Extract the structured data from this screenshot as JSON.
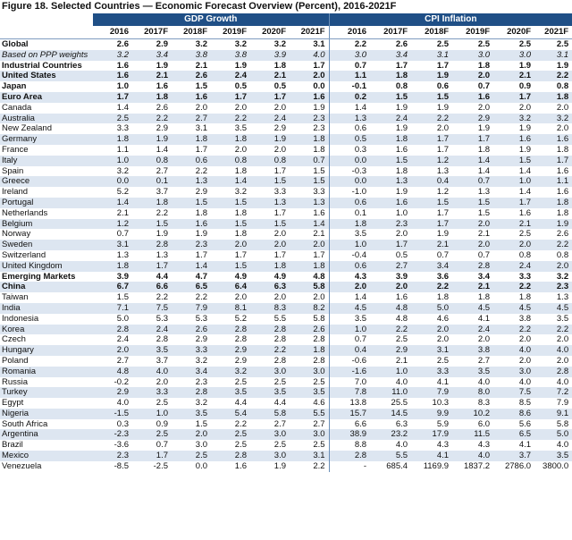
{
  "title": "Figure 18. Selected Countries — Economic Forecast Overview (Percent), 2016-2021F",
  "groups": [
    "GDP Growth",
    "CPI Inflation"
  ],
  "years": [
    "2016",
    "2017F",
    "2018F",
    "2019F",
    "2020F",
    "2021F"
  ],
  "rows": [
    {
      "label": "Global",
      "style": "bold",
      "gdp": [
        "2.6",
        "2.9",
        "3.2",
        "3.2",
        "3.2",
        "3.1"
      ],
      "cpi": [
        "2.2",
        "2.6",
        "2.5",
        "2.5",
        "2.5",
        "2.5"
      ]
    },
    {
      "label": "Based on PPP weights",
      "style": "italic",
      "gdp": [
        "3.2",
        "3.4",
        "3.8",
        "3.8",
        "3.9",
        "4.0"
      ],
      "cpi": [
        "3.0",
        "3.4",
        "3.1",
        "3.0",
        "3.0",
        "3.1"
      ]
    },
    {
      "label": "Industrial Countries",
      "style": "bold",
      "gdp": [
        "1.6",
        "1.9",
        "2.1",
        "1.9",
        "1.8",
        "1.7"
      ],
      "cpi": [
        "0.7",
        "1.7",
        "1.7",
        "1.8",
        "1.9",
        "1.9"
      ]
    },
    {
      "label": "United States",
      "style": "bold",
      "gdp": [
        "1.6",
        "2.1",
        "2.6",
        "2.4",
        "2.1",
        "2.0"
      ],
      "cpi": [
        "1.1",
        "1.8",
        "1.9",
        "2.0",
        "2.1",
        "2.2"
      ]
    },
    {
      "label": "Japan",
      "style": "bold",
      "gdp": [
        "1.0",
        "1.6",
        "1.5",
        "0.5",
        "0.5",
        "0.0"
      ],
      "cpi": [
        "-0.1",
        "0.8",
        "0.6",
        "0.7",
        "0.9",
        "0.8"
      ]
    },
    {
      "label": "Euro Area",
      "style": "bold",
      "gdp": [
        "1.7",
        "1.8",
        "1.6",
        "1.7",
        "1.7",
        "1.6"
      ],
      "cpi": [
        "0.2",
        "1.5",
        "1.5",
        "1.6",
        "1.7",
        "1.8"
      ]
    },
    {
      "label": "Canada",
      "style": "",
      "gdp": [
        "1.4",
        "2.6",
        "2.0",
        "2.0",
        "2.0",
        "1.9"
      ],
      "cpi": [
        "1.4",
        "1.9",
        "1.9",
        "2.0",
        "2.0",
        "2.0"
      ]
    },
    {
      "label": "Australia",
      "style": "",
      "gdp": [
        "2.5",
        "2.2",
        "2.7",
        "2.2",
        "2.4",
        "2.3"
      ],
      "cpi": [
        "1.3",
        "2.4",
        "2.2",
        "2.9",
        "3.2",
        "3.2"
      ]
    },
    {
      "label": "New Zealand",
      "style": "",
      "gdp": [
        "3.3",
        "2.9",
        "3.1",
        "3.5",
        "2.9",
        "2.3"
      ],
      "cpi": [
        "0.6",
        "1.9",
        "2.0",
        "1.9",
        "1.9",
        "2.0"
      ]
    },
    {
      "label": "Germany",
      "style": "",
      "gdp": [
        "1.8",
        "1.9",
        "1.8",
        "1.8",
        "1.9",
        "1.8"
      ],
      "cpi": [
        "0.5",
        "1.8",
        "1.7",
        "1.7",
        "1.6",
        "1.6"
      ]
    },
    {
      "label": "France",
      "style": "",
      "gdp": [
        "1.1",
        "1.4",
        "1.7",
        "2.0",
        "2.0",
        "1.8"
      ],
      "cpi": [
        "0.3",
        "1.6",
        "1.7",
        "1.8",
        "1.9",
        "1.8"
      ]
    },
    {
      "label": "Italy",
      "style": "",
      "gdp": [
        "1.0",
        "0.8",
        "0.6",
        "0.8",
        "0.8",
        "0.7"
      ],
      "cpi": [
        "0.0",
        "1.5",
        "1.2",
        "1.4",
        "1.5",
        "1.7"
      ]
    },
    {
      "label": "Spain",
      "style": "",
      "gdp": [
        "3.2",
        "2.7",
        "2.2",
        "1.8",
        "1.7",
        "1.5"
      ],
      "cpi": [
        "-0.3",
        "1.8",
        "1.3",
        "1.4",
        "1.4",
        "1.6"
      ]
    },
    {
      "label": "Greece",
      "style": "",
      "gdp": [
        "0.0",
        "0.1",
        "1.3",
        "1.4",
        "1.5",
        "1.5"
      ],
      "cpi": [
        "0.0",
        "1.3",
        "0.4",
        "0.7",
        "1.0",
        "1.1"
      ]
    },
    {
      "label": "Ireland",
      "style": "",
      "gdp": [
        "5.2",
        "3.7",
        "2.9",
        "3.2",
        "3.3",
        "3.3"
      ],
      "cpi": [
        "-1.0",
        "1.9",
        "1.2",
        "1.3",
        "1.4",
        "1.6"
      ]
    },
    {
      "label": "Portugal",
      "style": "",
      "gdp": [
        "1.4",
        "1.8",
        "1.5",
        "1.5",
        "1.3",
        "1.3"
      ],
      "cpi": [
        "0.6",
        "1.6",
        "1.5",
        "1.5",
        "1.7",
        "1.8"
      ]
    },
    {
      "label": "Netherlands",
      "style": "",
      "gdp": [
        "2.1",
        "2.2",
        "1.8",
        "1.8",
        "1.7",
        "1.6"
      ],
      "cpi": [
        "0.1",
        "1.0",
        "1.7",
        "1.5",
        "1.6",
        "1.8"
      ]
    },
    {
      "label": "Belgium",
      "style": "",
      "gdp": [
        "1.2",
        "1.5",
        "1.6",
        "1.5",
        "1.5",
        "1.4"
      ],
      "cpi": [
        "1.8",
        "2.3",
        "1.7",
        "2.0",
        "2.1",
        "1.9"
      ]
    },
    {
      "label": "Norway",
      "style": "",
      "gdp": [
        "0.7",
        "1.9",
        "1.9",
        "1.8",
        "2.0",
        "2.1"
      ],
      "cpi": [
        "3.5",
        "2.0",
        "1.9",
        "2.1",
        "2.5",
        "2.6"
      ]
    },
    {
      "label": "Sweden",
      "style": "",
      "gdp": [
        "3.1",
        "2.8",
        "2.3",
        "2.0",
        "2.0",
        "2.0"
      ],
      "cpi": [
        "1.0",
        "1.7",
        "2.1",
        "2.0",
        "2.0",
        "2.2"
      ]
    },
    {
      "label": "Switzerland",
      "style": "",
      "gdp": [
        "1.3",
        "1.3",
        "1.7",
        "1.7",
        "1.7",
        "1.7"
      ],
      "cpi": [
        "-0.4",
        "0.5",
        "0.7",
        "0.7",
        "0.8",
        "0.8"
      ]
    },
    {
      "label": "United Kingdom",
      "style": "",
      "gdp": [
        "1.8",
        "1.7",
        "1.4",
        "1.5",
        "1.8",
        "1.8"
      ],
      "cpi": [
        "0.6",
        "2.7",
        "3.4",
        "2.8",
        "2.4",
        "2.0"
      ]
    },
    {
      "label": "Emerging Markets",
      "style": "bold",
      "gdp": [
        "3.9",
        "4.4",
        "4.7",
        "4.9",
        "4.9",
        "4.8"
      ],
      "cpi": [
        "4.3",
        "3.9",
        "3.6",
        "3.4",
        "3.3",
        "3.2"
      ]
    },
    {
      "label": "China",
      "style": "bold",
      "gdp": [
        "6.7",
        "6.6",
        "6.5",
        "6.4",
        "6.3",
        "5.8"
      ],
      "cpi": [
        "2.0",
        "2.0",
        "2.2",
        "2.1",
        "2.2",
        "2.3"
      ]
    },
    {
      "label": "Taiwan",
      "style": "",
      "gdp": [
        "1.5",
        "2.2",
        "2.2",
        "2.0",
        "2.0",
        "2.0"
      ],
      "cpi": [
        "1.4",
        "1.6",
        "1.8",
        "1.8",
        "1.8",
        "1.3"
      ]
    },
    {
      "label": "India",
      "style": "",
      "gdp": [
        "7.1",
        "7.5",
        "7.9",
        "8.1",
        "8.3",
        "8.2"
      ],
      "cpi": [
        "4.5",
        "4.8",
        "5.0",
        "4.5",
        "4.5",
        "4.5"
      ]
    },
    {
      "label": "Indonesia",
      "style": "",
      "gdp": [
        "5.0",
        "5.3",
        "5.3",
        "5.2",
        "5.5",
        "5.8"
      ],
      "cpi": [
        "3.5",
        "4.8",
        "4.6",
        "4.1",
        "3.8",
        "3.5"
      ]
    },
    {
      "label": "Korea",
      "style": "",
      "gdp": [
        "2.8",
        "2.4",
        "2.6",
        "2.8",
        "2.8",
        "2.6"
      ],
      "cpi": [
        "1.0",
        "2.2",
        "2.0",
        "2.4",
        "2.2",
        "2.2"
      ]
    },
    {
      "label": "Czech",
      "style": "",
      "gdp": [
        "2.4",
        "2.8",
        "2.9",
        "2.8",
        "2.8",
        "2.8"
      ],
      "cpi": [
        "0.7",
        "2.5",
        "2.0",
        "2.0",
        "2.0",
        "2.0"
      ]
    },
    {
      "label": "Hungary",
      "style": "",
      "gdp": [
        "2.0",
        "3.5",
        "3.3",
        "2.9",
        "2.2",
        "1.8"
      ],
      "cpi": [
        "0.4",
        "2.9",
        "3.1",
        "3.8",
        "4.0",
        "4.0"
      ]
    },
    {
      "label": "Poland",
      "style": "",
      "gdp": [
        "2.7",
        "3.7",
        "3.2",
        "2.9",
        "2.8",
        "2.8"
      ],
      "cpi": [
        "-0.6",
        "2.1",
        "2.5",
        "2.7",
        "2.0",
        "2.0"
      ]
    },
    {
      "label": "Romania",
      "style": "",
      "gdp": [
        "4.8",
        "4.0",
        "3.4",
        "3.2",
        "3.0",
        "3.0"
      ],
      "cpi": [
        "-1.6",
        "1.0",
        "3.3",
        "3.5",
        "3.0",
        "2.8"
      ]
    },
    {
      "label": "Russia",
      "style": "",
      "gdp": [
        "-0.2",
        "2.0",
        "2.3",
        "2.5",
        "2.5",
        "2.5"
      ],
      "cpi": [
        "7.0",
        "4.0",
        "4.1",
        "4.0",
        "4.0",
        "4.0"
      ]
    },
    {
      "label": "Turkey",
      "style": "",
      "gdp": [
        "2.9",
        "3.3",
        "2.8",
        "3.5",
        "3.5",
        "3.5"
      ],
      "cpi": [
        "7.8",
        "11.0",
        "7.9",
        "8.0",
        "7.5",
        "7.2"
      ]
    },
    {
      "label": "Egypt",
      "style": "",
      "gdp": [
        "4.0",
        "2.5",
        "3.2",
        "4.4",
        "4.4",
        "4.6"
      ],
      "cpi": [
        "13.8",
        "25.5",
        "10.3",
        "8.3",
        "8.5",
        "7.9"
      ]
    },
    {
      "label": "Nigeria",
      "style": "",
      "gdp": [
        "-1.5",
        "1.0",
        "3.5",
        "5.4",
        "5.8",
        "5.5"
      ],
      "cpi": [
        "15.7",
        "14.5",
        "9.9",
        "10.2",
        "8.6",
        "9.1"
      ]
    },
    {
      "label": "South Africa",
      "style": "",
      "gdp": [
        "0.3",
        "0.9",
        "1.5",
        "2.2",
        "2.7",
        "2.7"
      ],
      "cpi": [
        "6.6",
        "6.3",
        "5.9",
        "6.0",
        "5.6",
        "5.8"
      ]
    },
    {
      "label": "Argentina",
      "style": "",
      "gdp": [
        "-2.3",
        "2.5",
        "2.0",
        "2.5",
        "3.0",
        "3.0"
      ],
      "cpi": [
        "38.9",
        "23.2",
        "17.9",
        "11.5",
        "6.5",
        "5.0"
      ]
    },
    {
      "label": "Brazil",
      "style": "",
      "gdp": [
        "-3.6",
        "0.7",
        "3.0",
        "2.5",
        "2.5",
        "2.5"
      ],
      "cpi": [
        "8.8",
        "4.0",
        "4.3",
        "4.3",
        "4.1",
        "4.0"
      ]
    },
    {
      "label": "Mexico",
      "style": "",
      "gdp": [
        "2.3",
        "1.7",
        "2.5",
        "2.8",
        "3.0",
        "3.1"
      ],
      "cpi": [
        "2.8",
        "5.5",
        "4.1",
        "4.0",
        "3.7",
        "3.5"
      ]
    },
    {
      "label": "Venezuela",
      "style": "",
      "gdp": [
        "-8.5",
        "-2.5",
        "0.0",
        "1.6",
        "1.9",
        "2.2"
      ],
      "cpi": [
        "-",
        "685.4",
        "1169.9",
        "1837.2",
        "2786.0",
        "3800.0"
      ]
    }
  ]
}
